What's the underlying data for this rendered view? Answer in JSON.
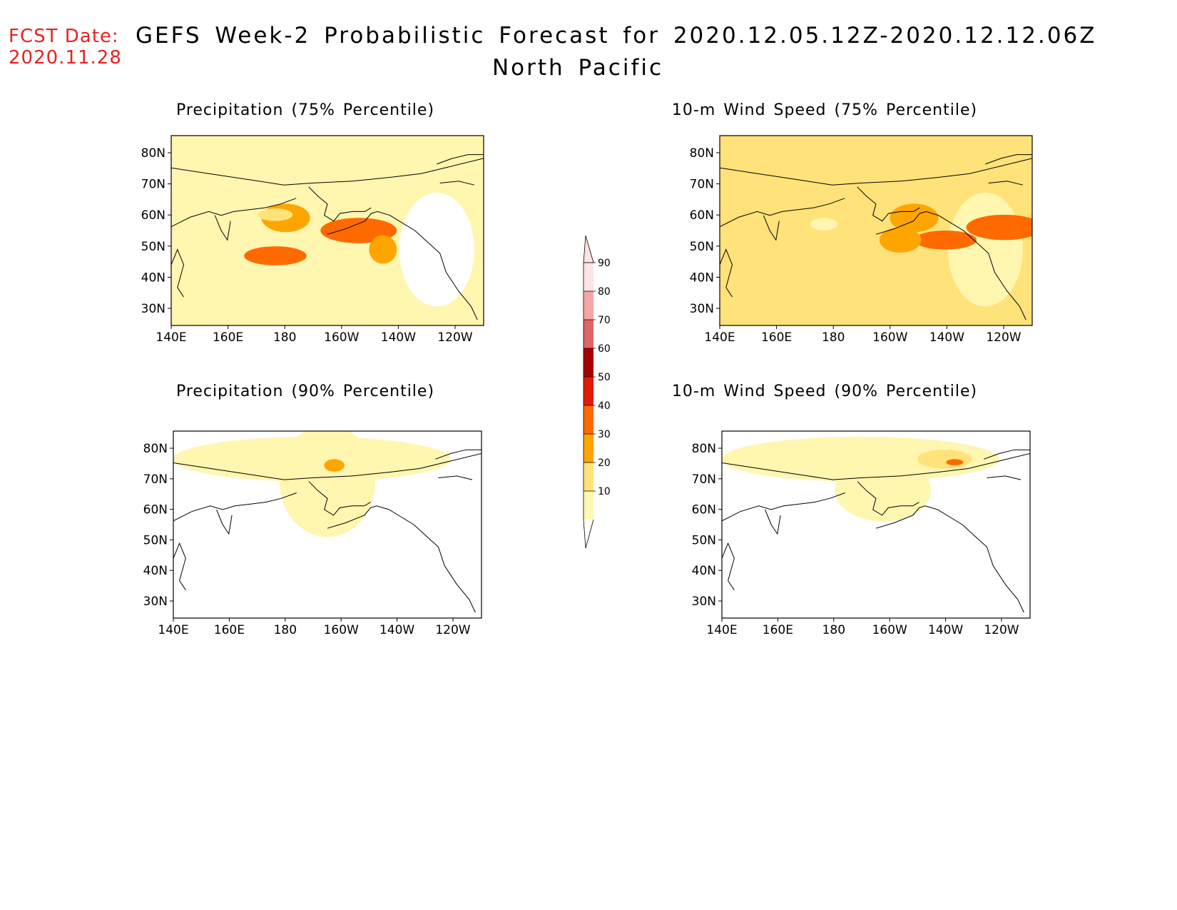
{
  "header": {
    "fcst_date_label": "FCST Date:",
    "fcst_date": "2020.11.28",
    "title": "GEFS Week-2 Probabilistic Forecast for 2020.12.05.12Z-2020.12.12.06Z",
    "subtitle": "North Pacific"
  },
  "axes": {
    "lat_ticks": [
      "80N",
      "70N",
      "60N",
      "50N",
      "40N",
      "30N"
    ],
    "lon_ticks": [
      "140E",
      "160E",
      "180",
      "160W",
      "140W",
      "120W"
    ]
  },
  "colorbar": {
    "levels": [
      "10",
      "20",
      "30",
      "40",
      "50",
      "60",
      "70",
      "80",
      "90"
    ],
    "colors": [
      "#ffffff",
      "#fff6b0",
      "#ffe27a",
      "#ffa500",
      "#ff6a00",
      "#e21a00",
      "#a80000",
      "#e06666",
      "#f4a6a6",
      "#fde3e3"
    ]
  },
  "panels": [
    {
      "id": "precip75",
      "title": "Precipitation (75% Percentile)",
      "base_level": 1,
      "blobs": [
        [
          330,
          260,
          70,
          45,
          3
        ],
        [
          540,
          300,
          110,
          40,
          4
        ],
        [
          300,
          250,
          50,
          20,
          2
        ],
        [
          610,
          360,
          40,
          45,
          3
        ],
        [
          300,
          380,
          90,
          30,
          4
        ]
      ]
    },
    {
      "id": "wind75",
      "title": "10-m Wind Speed (75% Percentile)",
      "base_level": 2,
      "blobs": [
        [
          560,
          260,
          70,
          45,
          3
        ],
        [
          820,
          290,
          110,
          40,
          4
        ],
        [
          650,
          330,
          90,
          30,
          4
        ],
        [
          520,
          330,
          60,
          40,
          3
        ],
        [
          300,
          280,
          40,
          20,
          1
        ]
      ]
    },
    {
      "id": "precip90",
      "title": "Precipitation (90% Percentile)",
      "base_level": 0,
      "blobs": [
        [
          450,
          160,
          140,
          180,
          1
        ],
        [
          470,
          110,
          30,
          20,
          3
        ],
        [
          440,
          40,
          60,
          20,
          1
        ]
      ]
    },
    {
      "id": "wind90",
      "title": "10-m Wind Speed (90% Percentile)",
      "base_level": 0,
      "blobs": [
        [
          470,
          190,
          140,
          100,
          1
        ],
        [
          650,
          90,
          80,
          30,
          2
        ],
        [
          680,
          100,
          25,
          10,
          4
        ]
      ]
    }
  ]
}
